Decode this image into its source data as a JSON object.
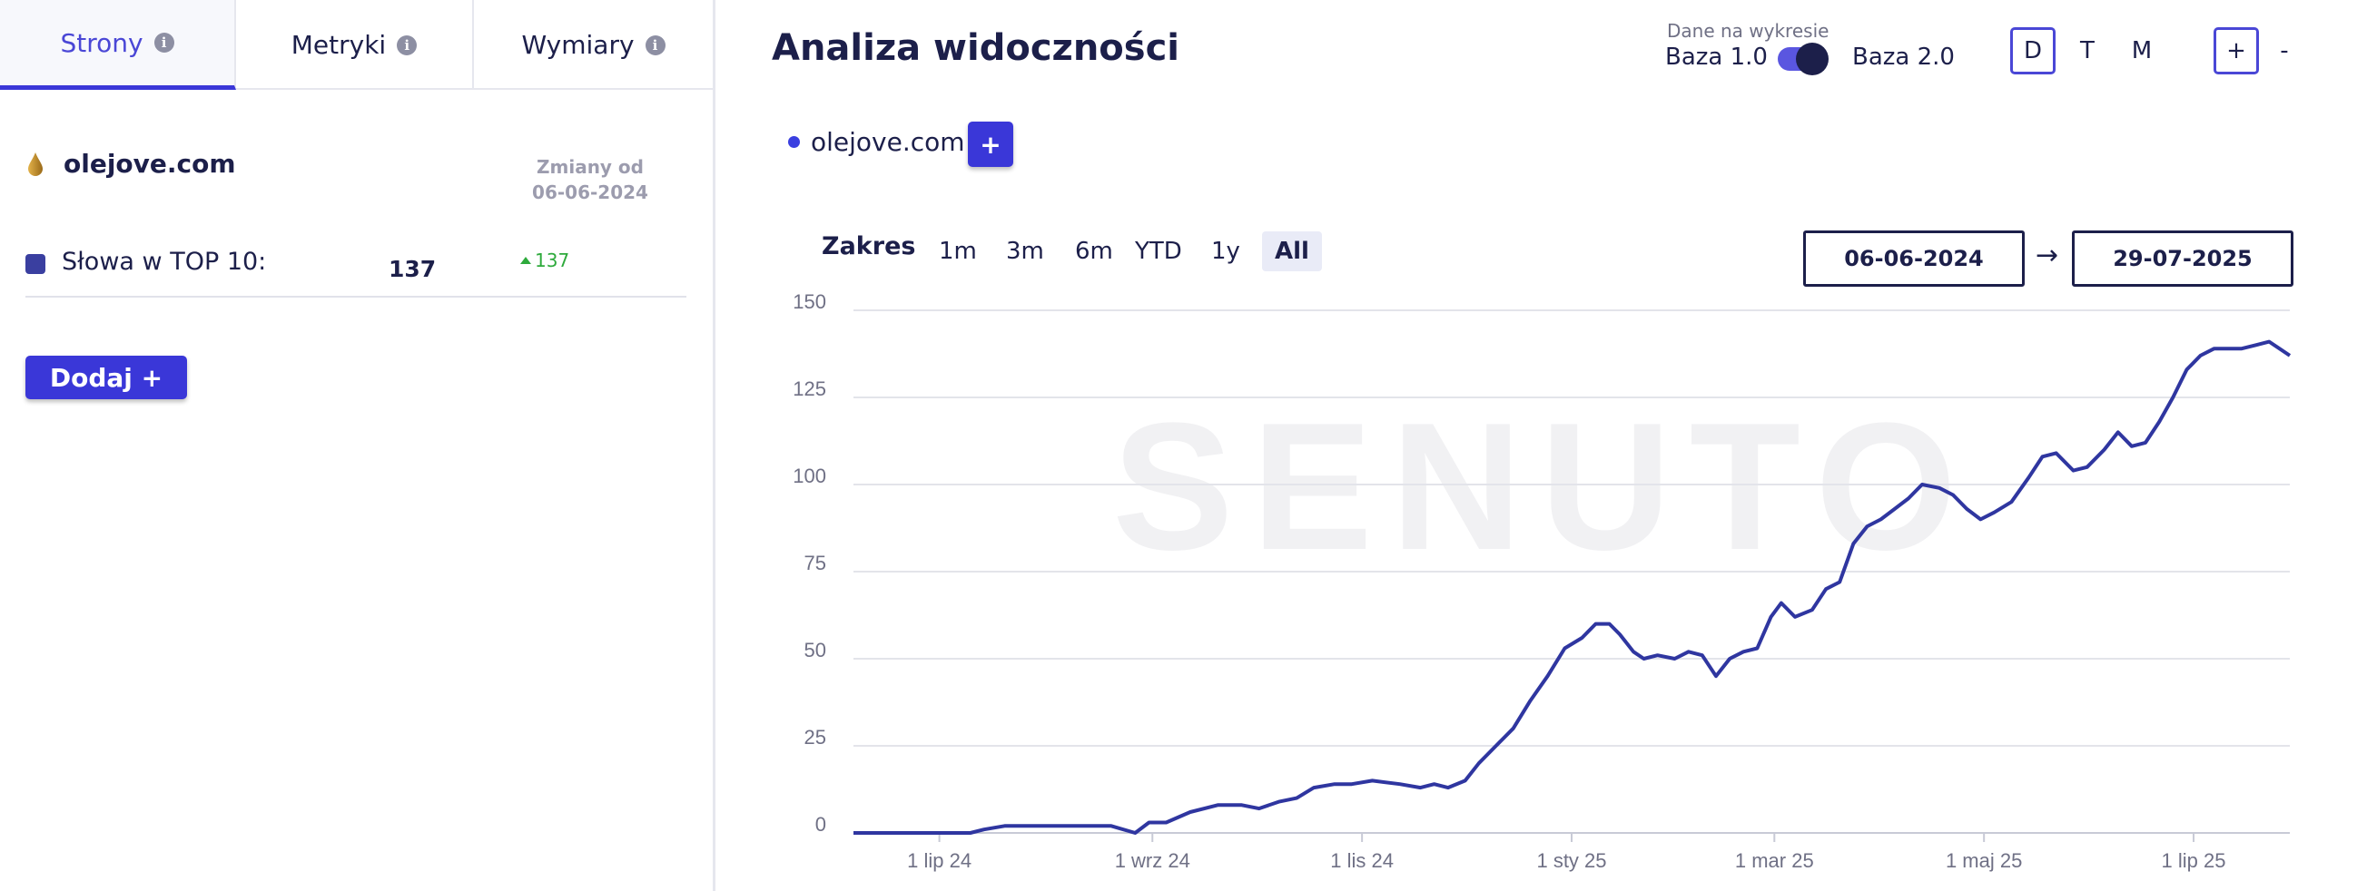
{
  "tabs": [
    {
      "label": "Strony",
      "info": "i"
    },
    {
      "label": "Metryki",
      "info": "i"
    },
    {
      "label": "Wymiary",
      "info": "i"
    }
  ],
  "domain": {
    "name": "olejove.com"
  },
  "changes": {
    "line1": "Zmiany od",
    "line2": "06-06-2024"
  },
  "metric": {
    "label": "Słowa w TOP 10:",
    "value": "137",
    "delta": "137",
    "color": "#3a3fa0"
  },
  "add_button": "Dodaj +",
  "header": {
    "title": "Analiza widoczności",
    "data_label": "Dane na wykresie",
    "base1": "Baza 1.0",
    "base2": "Baza 2.0"
  },
  "periods": [
    "D",
    "T",
    "M"
  ],
  "zoom": {
    "plus": "+",
    "minus": "-"
  },
  "series_tag": {
    "name": "olejove.com",
    "add": "+"
  },
  "range": {
    "label": "Zakres",
    "buttons": [
      "1m",
      "3m",
      "6m",
      "YTD",
      "1y",
      "All"
    ],
    "active": "All",
    "from": "06-06-2024",
    "arrow": "→",
    "to": "29-07-2025"
  },
  "colors": {
    "accent": "#3a37d8",
    "line": "#2f36a0",
    "grid": "#e3e4ea"
  },
  "chart_data": {
    "type": "line",
    "x_range": [
      "2024-06-06",
      "2025-07-29"
    ],
    "ylim": [
      0,
      150
    ],
    "y_ticks": [
      0,
      25,
      50,
      75,
      100,
      125,
      150
    ],
    "x_tick_labels": [
      "1 lip 24",
      "1 wrz 24",
      "1 lis 24",
      "1 sty 25",
      "1 mar 25",
      "1 maj 25",
      "1 lip 25"
    ],
    "x_tick_dates": [
      "2024-07-01",
      "2024-09-01",
      "2024-11-01",
      "2025-01-01",
      "2025-03-01",
      "2025-05-01",
      "2025-07-01"
    ],
    "watermark": "SENUTO",
    "series": [
      {
        "name": "olejove.com",
        "x": [
          "2024-06-06",
          "2024-07-10",
          "2024-07-14",
          "2024-07-20",
          "2024-07-26",
          "2024-08-20",
          "2024-08-27",
          "2024-08-31",
          "2024-09-05",
          "2024-09-12",
          "2024-09-20",
          "2024-09-27",
          "2024-10-02",
          "2024-10-08",
          "2024-10-13",
          "2024-10-18",
          "2024-10-24",
          "2024-10-29",
          "2024-11-04",
          "2024-11-12",
          "2024-11-18",
          "2024-11-22",
          "2024-11-26",
          "2024-12-01",
          "2024-12-05",
          "2024-12-10",
          "2024-12-15",
          "2024-12-20",
          "2024-12-25",
          "2024-12-30",
          "2025-01-04",
          "2025-01-08",
          "2025-01-12",
          "2025-01-15",
          "2025-01-19",
          "2025-01-22",
          "2025-01-26",
          "2025-01-31",
          "2025-02-04",
          "2025-02-08",
          "2025-02-12",
          "2025-02-16",
          "2025-02-20",
          "2025-02-24",
          "2025-02-28",
          "2025-03-03",
          "2025-03-07",
          "2025-03-12",
          "2025-03-16",
          "2025-03-20",
          "2025-03-24",
          "2025-03-28",
          "2025-04-01",
          "2025-04-05",
          "2025-04-09",
          "2025-04-13",
          "2025-04-18",
          "2025-04-22",
          "2025-04-26",
          "2025-04-30",
          "2025-05-04",
          "2025-05-09",
          "2025-05-14",
          "2025-05-18",
          "2025-05-22",
          "2025-05-27",
          "2025-05-31",
          "2025-06-05",
          "2025-06-09",
          "2025-06-13",
          "2025-06-17",
          "2025-06-21",
          "2025-06-25",
          "2025-06-29",
          "2025-07-03",
          "2025-07-07",
          "2025-07-11",
          "2025-07-15",
          "2025-07-19",
          "2025-07-23",
          "2025-07-29"
        ],
        "y": [
          0,
          0,
          1,
          2,
          2,
          2,
          0,
          3,
          3,
          6,
          8,
          8,
          7,
          9,
          10,
          13,
          14,
          14,
          15,
          14,
          13,
          14,
          13,
          15,
          20,
          25,
          30,
          38,
          45,
          53,
          56,
          60,
          60,
          57,
          52,
          50,
          51,
          50,
          52,
          51,
          45,
          50,
          52,
          53,
          62,
          66,
          62,
          64,
          70,
          72,
          83,
          88,
          90,
          93,
          96,
          100,
          99,
          97,
          93,
          90,
          92,
          95,
          102,
          108,
          109,
          104,
          105,
          110,
          115,
          111,
          112,
          118,
          125,
          133,
          137,
          139,
          139,
          139,
          140,
          141,
          137
        ]
      }
    ]
  }
}
